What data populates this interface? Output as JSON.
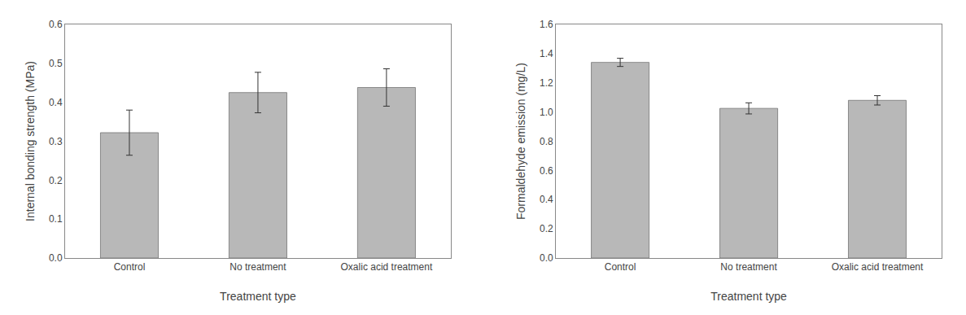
{
  "chart_data": [
    {
      "type": "bar",
      "categories": [
        "Control",
        "No treatment",
        "Oxalic acid treatment"
      ],
      "values": [
        0.322,
        0.425,
        0.438
      ],
      "errors": [
        0.058,
        0.052,
        0.048
      ],
      "xlabel": "Treatment type",
      "ylabel": "Internal bonding strength (MPa)",
      "ylim": [
        0.0,
        0.6
      ],
      "yticks": [
        {
          "value": 0.0,
          "label": "0.0"
        },
        0.1,
        0.2,
        0.3,
        0.4,
        0.5,
        0.6
      ],
      "color": "#b8b8b8",
      "grid": false
    },
    {
      "type": "bar",
      "categories": [
        "Control",
        "No treatment",
        "Oxalic acid treatment"
      ],
      "values": [
        1.34,
        1.025,
        1.08
      ],
      "errors": [
        0.028,
        0.038,
        0.032
      ],
      "xlabel": "Treatment type",
      "ylabel": "Formaldehyde emission (mg/L)",
      "ylim": [
        0.0,
        1.6
      ],
      "yticks": [
        {
          "value": 0.0,
          "label": "0.0"
        },
        0.2,
        0.4,
        0.6,
        0.8,
        {
          "value": 1.0,
          "label": "1.0"
        },
        1.2,
        1.4,
        1.6
      ],
      "color": "#b8b8b8",
      "grid": false
    }
  ]
}
